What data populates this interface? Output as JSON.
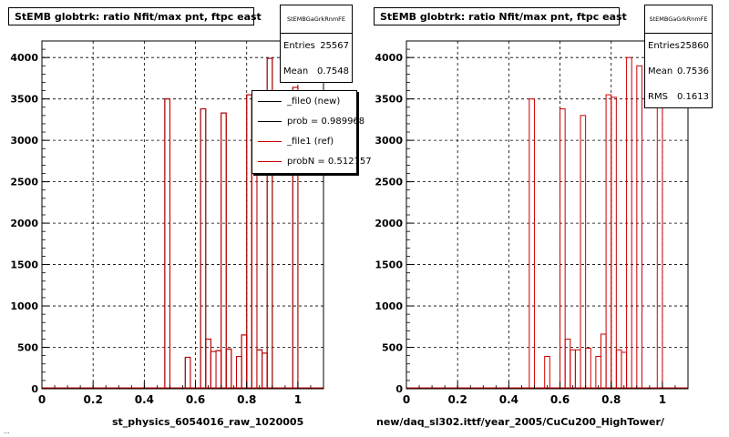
{
  "colors": {
    "ref": "#cc0000",
    "new": "#000000",
    "grid": "#000000"
  },
  "panels": [
    {
      "title": "StEMB globtrk: ratio Nfit/max pnt, ftpc east",
      "stats": {
        "name": "StEMBGaGrkRnmFE",
        "rows": [
          {
            "label": "Entries",
            "value": "25567"
          },
          {
            "label": "Mean",
            "value": "0.7548"
          }
        ]
      },
      "legend": [
        {
          "label": "_file0 (new)",
          "color": "#000000"
        },
        {
          "label": "prob = 0.989968",
          "color": "#000000"
        },
        {
          "label": "_file1 (ref)",
          "color": "#cc0000"
        },
        {
          "label": "probN = 0.512757",
          "color": "#cc0000"
        }
      ],
      "xtitle": "st_physics_6054016_raw_1020005"
    },
    {
      "title": "StEMB globtrk: ratio Nfit/max pnt, ftpc east",
      "stats": {
        "name": "StEMBGaGrkRnmFE",
        "rows": [
          {
            "label": "Entries",
            "value": "25860"
          },
          {
            "label": "Mean",
            "value": "0.7536"
          },
          {
            "label": "RMS",
            "value": "0.1613"
          }
        ]
      },
      "xtitle": "new/daq_sl302.ittf/year_2005/CuCu200_HighTower/"
    }
  ],
  "footnote": "...",
  "chart_data": [
    {
      "type": "histogram",
      "title": "StEMB globtrk: ratio Nfit/max pnt, ftpc east",
      "xlabel": "st_physics_6054016_raw_1020005",
      "xlim": [
        0,
        1.1
      ],
      "ylim": [
        0,
        4200
      ],
      "xticks": [
        0,
        0.2,
        0.4,
        0.6,
        0.8,
        1
      ],
      "yticks": [
        0,
        500,
        1000,
        1500,
        2000,
        2500,
        3000,
        3500,
        4000
      ],
      "grid": true,
      "bin_width": 0.02,
      "bin_starts": [
        0.48,
        0.5,
        0.56,
        0.62,
        0.64,
        0.66,
        0.68,
        0.7,
        0.72,
        0.74,
        0.76,
        0.78,
        0.8,
        0.82,
        0.84,
        0.86,
        0.88,
        0.9,
        0.98
      ],
      "series": [
        {
          "name": "_file0 (new)",
          "color": "#000000",
          "values": [
            3500,
            0,
            380,
            3380,
            600,
            450,
            460,
            3330,
            480,
            0,
            390,
            650,
            3550,
            3520,
            470,
            430,
            3990,
            0,
            3640
          ]
        },
        {
          "name": "_file1 (ref)",
          "color": "#cc0000",
          "values": [
            3500,
            0,
            380,
            3380,
            600,
            450,
            460,
            3330,
            480,
            0,
            390,
            650,
            3550,
            3520,
            470,
            430,
            3990,
            0,
            3640
          ]
        }
      ]
    },
    {
      "type": "histogram",
      "title": "StEMB globtrk: ratio Nfit/max pnt, ftpc east",
      "xlabel": "new/daq_sl302.ittf/year_2005/CuCu200_HighTower/",
      "xlim": [
        0,
        1.1
      ],
      "ylim": [
        0,
        4200
      ],
      "xticks": [
        0,
        0.2,
        0.4,
        0.6,
        0.8,
        1
      ],
      "yticks": [
        0,
        500,
        1000,
        1500,
        2000,
        2500,
        3000,
        3500,
        4000
      ],
      "grid": true,
      "bin_width": 0.02,
      "bin_starts": [
        0.48,
        0.5,
        0.54,
        0.56,
        0.6,
        0.62,
        0.64,
        0.66,
        0.68,
        0.7,
        0.72,
        0.74,
        0.76,
        0.78,
        0.8,
        0.82,
        0.84,
        0.86,
        0.88,
        0.9,
        0.96,
        0.98
      ],
      "series": [
        {
          "name": "",
          "color": "#cc0000",
          "values": [
            3500,
            0,
            390,
            0,
            3380,
            600,
            470,
            470,
            3300,
            490,
            0,
            390,
            660,
            3550,
            3520,
            470,
            440,
            4000,
            0,
            3900,
            0,
            3900
          ]
        }
      ]
    }
  ]
}
